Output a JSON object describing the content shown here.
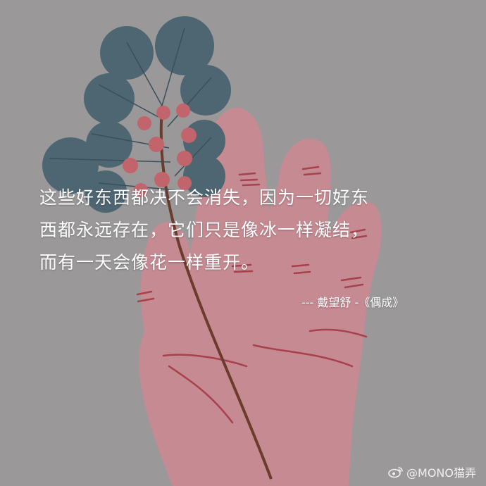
{
  "quote": {
    "lines": [
      "这些好东西都决不会消失，因为一切好东",
      "西都永远存在，它们只是像冰一样凝结，",
      "而有一天会像花一样重开。"
    ],
    "attribution": "--- 戴望舒 -《偶成》"
  },
  "watermark": {
    "icon": "weibo-icon",
    "handle": "@MONO猫弄"
  },
  "colors": {
    "background": "#9a9899",
    "hand": "#c58a92",
    "palm_lines": "#a8414c",
    "leaves": "#4d6672",
    "berries": "#c2646b",
    "stem": "#6b3b2c"
  }
}
